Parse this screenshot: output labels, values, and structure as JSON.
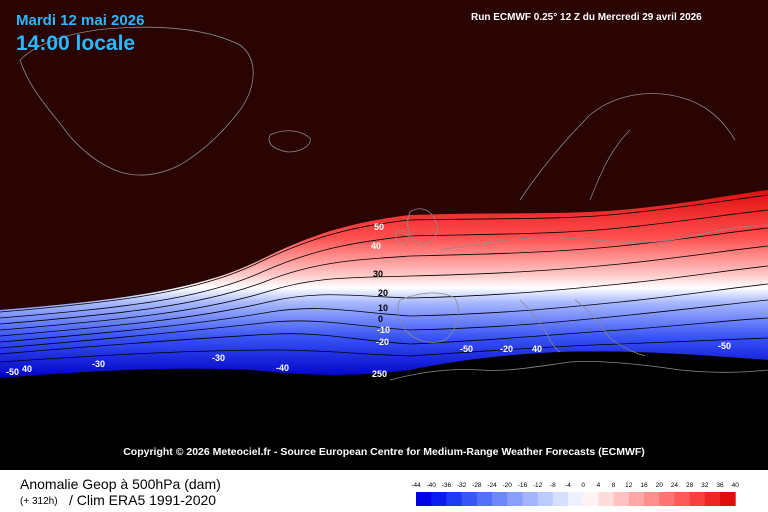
{
  "header": {
    "date": "Mardi 12 mai 2026",
    "hour": "14:00 locale",
    "run": "Run ECMWF 0.25° 12 Z du Mercredi 29 avril 2026"
  },
  "copyright": "Copyright © 2026 Meteociel.fr - Source European Centre for Medium-Range Weather Forecasts (ECMWF)",
  "legend": {
    "parameter": "Anomalie Geop à 500hPa (dam)",
    "lead": "(+ 312h)",
    "clim": "/ Clim ERA5 1991-2020",
    "ticks": [
      "-44",
      "-40",
      "-36",
      "-32",
      "-28",
      "-24",
      "-20",
      "-16",
      "-12",
      "-8",
      "-4",
      "0",
      "4",
      "8",
      "12",
      "16",
      "20",
      "24",
      "28",
      "32",
      "36",
      "40"
    ],
    "colors": [
      "#0000e8",
      "#0a1cf0",
      "#1f3af4",
      "#3a55f6",
      "#5470f8",
      "#6e88fa",
      "#889ffb",
      "#a3b5fc",
      "#bccbfd",
      "#d6e0fe",
      "#eef2ff",
      "#fff4f4",
      "#ffdcdc",
      "#ffc2c2",
      "#ffa8a8",
      "#ff8e8e",
      "#ff7474",
      "#ff5a5a",
      "#f84040",
      "#ee2626",
      "#e00f0f"
    ]
  },
  "contour_labels": [
    "50",
    "40",
    "30",
    "20",
    "10",
    "0",
    "-10",
    "-20",
    "250",
    "-50",
    "40",
    "-30",
    "-50",
    "-40",
    "-30",
    "40",
    "-20",
    "-50"
  ],
  "colors": {
    "background": "#2a0303",
    "sea_ice": "#000000",
    "title": "#2ab8ff",
    "coast": "#8a8a8a"
  }
}
